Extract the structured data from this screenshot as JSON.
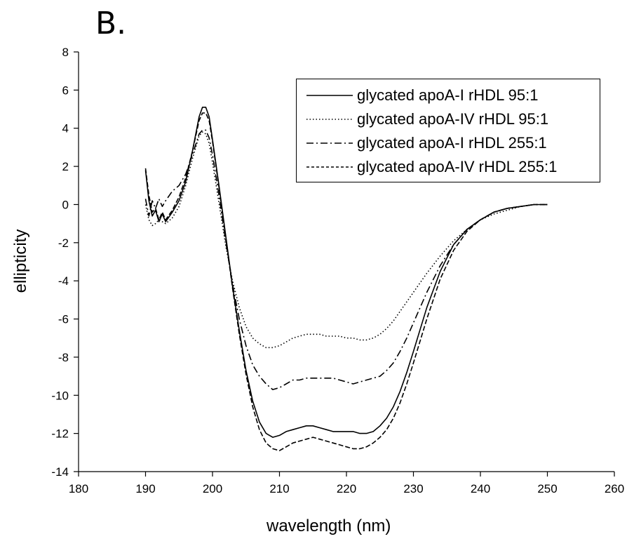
{
  "panel_label": "B.",
  "chart_data": {
    "type": "line",
    "title": "",
    "xlabel": "wavelength (nm)",
    "ylabel": "ellipticity",
    "xlim": [
      180,
      260
    ],
    "ylim": [
      -14,
      8
    ],
    "xticks": [
      180,
      190,
      200,
      210,
      220,
      230,
      240,
      250,
      260
    ],
    "yticks": [
      8,
      6,
      4,
      2,
      0,
      -2,
      -4,
      -6,
      -8,
      -10,
      -12,
      -14
    ],
    "grid": false,
    "legend_position": "top-right",
    "series": [
      {
        "name": "glycated apoA-I rHDL 95:1",
        "style": "solid",
        "x": [
          190,
          190.5,
          191,
          191.5,
          192,
          192.5,
          193,
          194,
          195,
          196,
          197,
          198,
          198.5,
          199,
          199.5,
          200,
          201,
          202,
          203,
          204,
          205,
          206,
          207,
          208,
          209,
          210,
          211,
          212,
          213,
          214,
          215,
          216,
          217,
          218,
          219,
          220,
          221,
          222,
          223,
          224,
          225,
          226,
          227,
          228,
          229,
          230,
          232,
          234,
          236,
          238,
          240,
          242,
          244,
          246,
          248,
          250
        ],
        "y": [
          1.8,
          0.2,
          -0.6,
          -0.3,
          -0.9,
          -0.5,
          -0.9,
          -0.4,
          0.2,
          1.2,
          2.8,
          4.6,
          5.1,
          5.1,
          4.6,
          3.4,
          0.9,
          -1.7,
          -4.3,
          -6.6,
          -8.7,
          -10.3,
          -11.4,
          -12.0,
          -12.2,
          -12.1,
          -11.9,
          -11.8,
          -11.7,
          -11.6,
          -11.6,
          -11.7,
          -11.8,
          -11.9,
          -11.9,
          -11.9,
          -11.9,
          -12.0,
          -12.0,
          -11.9,
          -11.6,
          -11.2,
          -10.6,
          -9.8,
          -8.8,
          -7.7,
          -5.4,
          -3.5,
          -2.1,
          -1.3,
          -0.8,
          -0.4,
          -0.2,
          -0.1,
          0.0,
          0.0
        ]
      },
      {
        "name": "glycated apoA-IV rHDL 95:1",
        "style": "dotted",
        "x": [
          190,
          190.5,
          191,
          191.5,
          192,
          193,
          194,
          195,
          196,
          197,
          198,
          198.5,
          199,
          199.5,
          200,
          201,
          202,
          203,
          204,
          205,
          206,
          207,
          208,
          209,
          210,
          211,
          212,
          213,
          214,
          215,
          216,
          217,
          218,
          219,
          220,
          221,
          222,
          223,
          224,
          225,
          226,
          227,
          228,
          230,
          232,
          234,
          236,
          238,
          240,
          242,
          244,
          246,
          248,
          250
        ],
        "y": [
          0.0,
          -0.8,
          -1.1,
          -1.0,
          -0.8,
          -1.0,
          -0.7,
          -0.1,
          1.0,
          2.4,
          3.6,
          3.8,
          3.7,
          3.2,
          2.2,
          0.0,
          -2.2,
          -4.0,
          -5.4,
          -6.4,
          -7.0,
          -7.3,
          -7.5,
          -7.5,
          -7.4,
          -7.2,
          -7.0,
          -6.9,
          -6.8,
          -6.8,
          -6.8,
          -6.9,
          -6.9,
          -6.9,
          -7.0,
          -7.0,
          -7.1,
          -7.1,
          -7.0,
          -6.8,
          -6.5,
          -6.1,
          -5.6,
          -4.6,
          -3.6,
          -2.7,
          -1.9,
          -1.3,
          -0.8,
          -0.5,
          -0.3,
          -0.1,
          0.0,
          0.0
        ]
      },
      {
        "name": "glycated apoA-I rHDL 255:1",
        "style": "dash-dot",
        "x": [
          190,
          190.5,
          191,
          191.5,
          192,
          192.5,
          193,
          194,
          195,
          196,
          197,
          198,
          198.5,
          199,
          199.5,
          200,
          201,
          202,
          203,
          204,
          205,
          206,
          207,
          208,
          209,
          210,
          211,
          212,
          213,
          214,
          215,
          216,
          217,
          218,
          219,
          220,
          221,
          222,
          223,
          224,
          225,
          226,
          227,
          228,
          229,
          230,
          232,
          234,
          236,
          238,
          240,
          242,
          244,
          246,
          248,
          250
        ],
        "y": [
          0.3,
          -0.6,
          0.2,
          -0.2,
          0.3,
          -0.1,
          0.2,
          0.7,
          1.0,
          1.6,
          2.6,
          3.7,
          3.9,
          3.9,
          3.5,
          2.6,
          0.4,
          -2.0,
          -4.2,
          -6.0,
          -7.4,
          -8.4,
          -9.0,
          -9.4,
          -9.7,
          -9.6,
          -9.4,
          -9.2,
          -9.2,
          -9.1,
          -9.1,
          -9.1,
          -9.1,
          -9.1,
          -9.2,
          -9.3,
          -9.4,
          -9.3,
          -9.2,
          -9.1,
          -9.0,
          -8.7,
          -8.3,
          -7.7,
          -7.0,
          -6.2,
          -4.6,
          -3.2,
          -2.1,
          -1.3,
          -0.8,
          -0.4,
          -0.2,
          -0.1,
          0.0,
          0.0
        ]
      },
      {
        "name": "glycated apoA-IV rHDL 255:1",
        "style": "dashed",
        "x": [
          190,
          190.5,
          191,
          191.5,
          192,
          192.5,
          193,
          194,
          195,
          196,
          197,
          198,
          198.5,
          199,
          199.5,
          200,
          201,
          202,
          203,
          204,
          205,
          206,
          207,
          208,
          209,
          210,
          211,
          212,
          213,
          214,
          215,
          216,
          217,
          218,
          219,
          220,
          221,
          222,
          223,
          224,
          225,
          226,
          227,
          228,
          229,
          230,
          232,
          234,
          236,
          238,
          240,
          242,
          244,
          246,
          248,
          250
        ],
        "y": [
          1.9,
          0.5,
          -0.4,
          -0.2,
          -0.8,
          -0.4,
          -0.8,
          -0.3,
          0.4,
          1.4,
          2.8,
          4.4,
          4.8,
          4.8,
          4.4,
          3.3,
          0.8,
          -1.8,
          -4.4,
          -6.8,
          -8.9,
          -10.6,
          -11.8,
          -12.5,
          -12.8,
          -12.9,
          -12.7,
          -12.5,
          -12.4,
          -12.3,
          -12.2,
          -12.3,
          -12.4,
          -12.5,
          -12.6,
          -12.7,
          -12.8,
          -12.8,
          -12.7,
          -12.5,
          -12.2,
          -11.8,
          -11.2,
          -10.4,
          -9.4,
          -8.3,
          -6.0,
          -3.9,
          -2.4,
          -1.4,
          -0.8,
          -0.4,
          -0.2,
          -0.1,
          0.0,
          0.0
        ]
      }
    ]
  }
}
